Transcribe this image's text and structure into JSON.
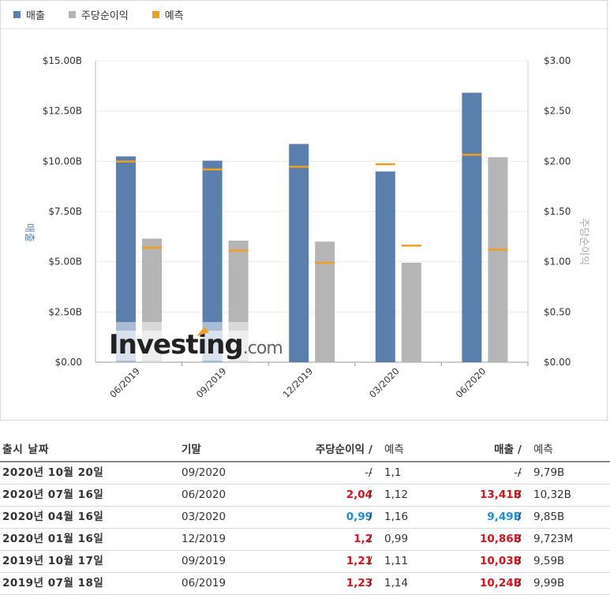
{
  "legend": {
    "revenue": "매출",
    "eps": "주당순이익",
    "forecast": "예측"
  },
  "colors": {
    "revenue": "#5b7fad",
    "eps": "#b5b5b5",
    "forecast": "#f0a020",
    "revenue_light": "#a9bcd6",
    "eps_light": "#d9d9d9"
  },
  "chart_data": {
    "type": "bar",
    "categories": [
      "06/2019",
      "09/2019",
      "12/2019",
      "03/2020",
      "06/2020"
    ],
    "series": [
      {
        "name": "매출",
        "axis": "left",
        "values": [
          10.24,
          10.03,
          10.86,
          9.49,
          13.41
        ],
        "forecast": [
          9.99,
          9.59,
          9.723,
          9.85,
          10.32
        ]
      },
      {
        "name": "주당순이익",
        "axis": "right",
        "values": [
          1.23,
          1.21,
          1.2,
          0.99,
          2.04
        ],
        "forecast": [
          1.14,
          1.11,
          0.99,
          1.16,
          1.12
        ]
      }
    ],
    "ylabel_left": "매출",
    "ylabel_right": "주당순이익",
    "ylim_left": [
      0,
      15
    ],
    "ylim_right": [
      0,
      3
    ],
    "yticks_left": [
      "$0.00",
      "$2.50B",
      "$5.00B",
      "$7.50B",
      "$10.00B",
      "$12.50B",
      "$15.00B"
    ],
    "yticks_right": [
      "$0.00",
      "$0.50",
      "$1.00",
      "$1.50",
      "$2.00",
      "$2.50",
      "$3.00"
    ],
    "watermark": "Investing.com"
  },
  "table": {
    "headers": {
      "date": "출시 날짜",
      "period": "기말",
      "eps": "주당순이익",
      "eps_sep": "/",
      "eps_forecast": "예측",
      "revenue": "매출",
      "revenue_sep": "/",
      "revenue_forecast": "예측"
    },
    "rows": [
      {
        "date": "2020년 10월 20일",
        "period": "09/2020",
        "eps": "--",
        "eps_class": "plain",
        "eps_forecast": "1,1",
        "revenue": "--",
        "revenue_class": "plain",
        "revenue_forecast": "9,79B"
      },
      {
        "date": "2020년 07월 16일",
        "period": "06/2020",
        "eps": "2,04",
        "eps_class": "pos",
        "eps_forecast": "1,12",
        "revenue": "13,41B",
        "revenue_class": "pos",
        "revenue_forecast": "10,32B"
      },
      {
        "date": "2020년 04월 16일",
        "period": "03/2020",
        "eps": "0,99",
        "eps_class": "neg",
        "eps_forecast": "1,16",
        "revenue": "9,49B",
        "revenue_class": "neg",
        "revenue_forecast": "9,85B"
      },
      {
        "date": "2020년 01월 16일",
        "period": "12/2019",
        "eps": "1,2",
        "eps_class": "pos",
        "eps_forecast": "0,99",
        "revenue": "10,86B",
        "revenue_class": "pos",
        "revenue_forecast": "9,723M"
      },
      {
        "date": "2019년 10월 17일",
        "period": "09/2019",
        "eps": "1,21",
        "eps_class": "pos",
        "eps_forecast": "1,11",
        "revenue": "10,03B",
        "revenue_class": "pos",
        "revenue_forecast": "9,59B"
      },
      {
        "date": "2019년 07월 18일",
        "period": "06/2019",
        "eps": "1,23",
        "eps_class": "pos",
        "eps_forecast": "1,14",
        "revenue": "10,24B",
        "revenue_class": "pos",
        "revenue_forecast": "9,99B"
      }
    ]
  }
}
